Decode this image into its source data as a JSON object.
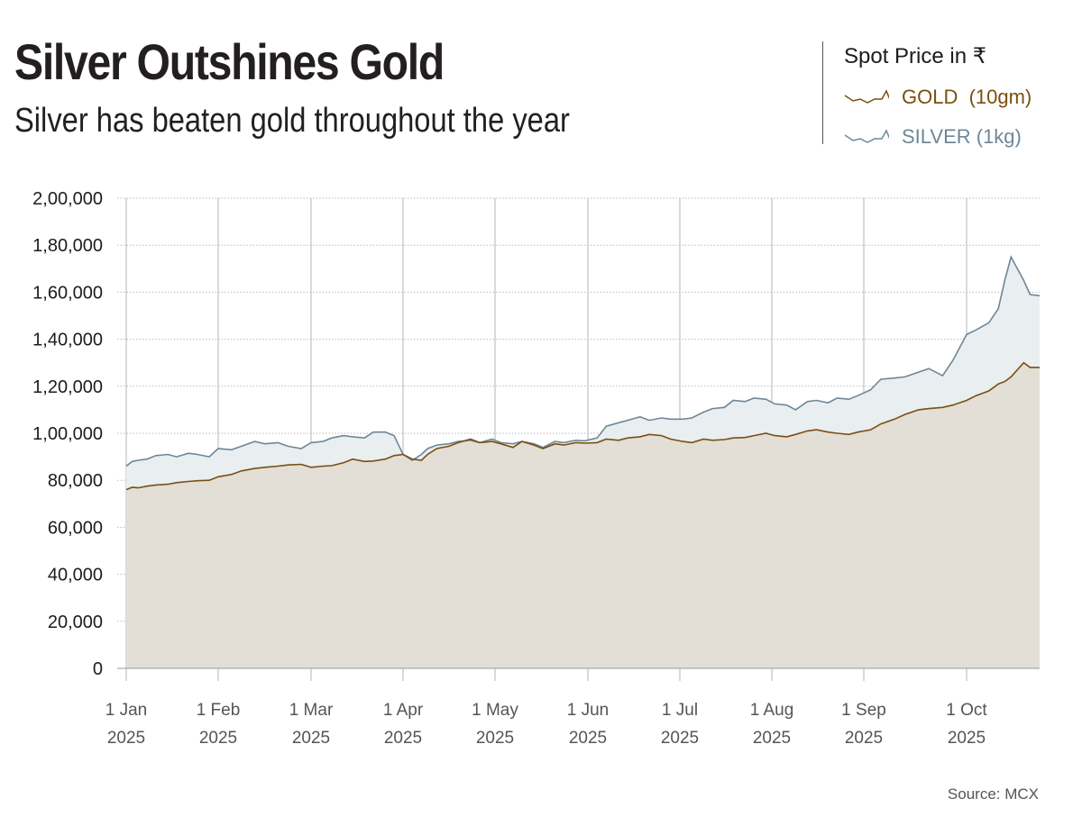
{
  "header": {
    "title": "Silver Outshines Gold",
    "subtitle": "Silver has beaten gold throughout the year"
  },
  "legend": {
    "title": "Spot Price in ₹",
    "items": [
      {
        "label": "GOLD  (10gm)",
        "color": "#7a4f10",
        "icon": "sparkline-icon"
      },
      {
        "label": "SILVER (1kg)",
        "color": "#6e8796",
        "icon": "sparkline-icon"
      }
    ]
  },
  "source": "Source: MCX",
  "colors": {
    "gold_line": "#7a4f10",
    "gold_fill": "#e3ded6",
    "silver_line": "#6e8796",
    "silver_fill": "#e9eef1",
    "grid": "#bbbbbb",
    "vgrid": "#b5b5b5"
  },
  "chart_data": {
    "type": "area",
    "title": "Silver Outshines Gold",
    "subtitle": "Silver has beaten gold throughout the year",
    "xlabel": "",
    "ylabel": "Spot Price in ₹",
    "ylim": [
      0,
      200000
    ],
    "xlim_days": [
      0,
      296
    ],
    "grid": true,
    "legend_position": "top-right",
    "yticks": [
      {
        "value": 0,
        "label": "0"
      },
      {
        "value": 20000,
        "label": "20,000"
      },
      {
        "value": 40000,
        "label": "40,000"
      },
      {
        "value": 60000,
        "label": "60,000"
      },
      {
        "value": 80000,
        "label": "80,000"
      },
      {
        "value": 100000,
        "label": "1,00,000"
      },
      {
        "value": 120000,
        "label": "1,20,000"
      },
      {
        "value": 140000,
        "label": "1,40,000"
      },
      {
        "value": 160000,
        "label": "1,60,000"
      },
      {
        "value": 180000,
        "label": "1,80,000"
      },
      {
        "value": 200000,
        "label": "2,00,000"
      }
    ],
    "xticks": [
      {
        "day": 0,
        "line1": "1 Jan",
        "line2": "2025"
      },
      {
        "day": 31,
        "line1": "1 Feb",
        "line2": "2025"
      },
      {
        "day": 59,
        "line1": "1 Mar",
        "line2": "2025"
      },
      {
        "day": 90,
        "line1": "1 Apr",
        "line2": "2025"
      },
      {
        "day": 120,
        "line1": "1 May",
        "line2": "2025"
      },
      {
        "day": 151,
        "line1": "1 Jun",
        "line2": "2025"
      },
      {
        "day": 181,
        "line1": "1 Jul",
        "line2": "2025"
      },
      {
        "day": 212,
        "line1": "1 Aug",
        "line2": "2025"
      },
      {
        "day": 243,
        "line1": "1 Sep",
        "line2": "2025"
      },
      {
        "day": 273,
        "line1": "1 Oct",
        "line2": "2025"
      }
    ],
    "x_days": [
      0,
      2,
      4,
      7,
      10,
      14,
      17,
      21,
      24,
      28,
      31,
      35,
      38,
      42,
      45,
      49,
      52,
      56,
      59,
      63,
      66,
      70,
      73,
      77,
      80,
      84,
      87,
      90,
      93,
      96,
      98,
      101,
      105,
      108,
      112,
      115,
      119,
      122,
      126,
      129,
      133,
      136,
      140,
      143,
      147,
      150,
      154,
      157,
      161,
      164,
      168,
      171,
      175,
      178,
      182,
      185,
      189,
      192,
      196,
      199,
      203,
      206,
      210,
      213,
      217,
      220,
      224,
      227,
      231,
      234,
      238,
      241,
      245,
      248,
      252,
      255,
      259,
      262,
      266,
      269,
      273,
      276,
      280,
      283,
      285,
      287,
      289,
      291,
      293,
      296
    ],
    "series": [
      {
        "name": "GOLD  (10gm)",
        "values": [
          76000,
          77000,
          76800,
          77500,
          78000,
          78300,
          79000,
          79500,
          79800,
          80000,
          81500,
          82500,
          84000,
          85000,
          85500,
          86000,
          86500,
          86800,
          85500,
          86000,
          86200,
          87500,
          89000,
          88000,
          88200,
          89000,
          90500,
          91000,
          89000,
          88500,
          91000,
          93500,
          94500,
          96000,
          97500,
          96000,
          96500,
          95500,
          94000,
          96500,
          95000,
          93500,
          95500,
          95000,
          96000,
          95800,
          96000,
          97500,
          97000,
          98000,
          98500,
          99500,
          99000,
          97500,
          96500,
          96000,
          97500,
          97000,
          97300,
          98000,
          98200,
          99000,
          100000,
          99000,
          98500,
          99500,
          101000,
          101500,
          100500,
          100000,
          99500,
          100500,
          101500,
          104000,
          106000,
          108000,
          110000,
          110500,
          111000,
          112000,
          114000,
          116000,
          118000,
          121000,
          122000,
          124000,
          127000,
          130000,
          128000,
          128000
        ]
      },
      {
        "name": "SILVER (1kg)",
        "values": [
          86000,
          88000,
          88500,
          89000,
          90500,
          91000,
          90000,
          91500,
          91000,
          90000,
          93500,
          93000,
          94500,
          96500,
          95500,
          96000,
          94500,
          93500,
          96000,
          96500,
          98000,
          99000,
          98500,
          98000,
          100500,
          100500,
          99000,
          91000,
          88500,
          91000,
          93500,
          95000,
          95500,
          96500,
          97000,
          96000,
          97500,
          96000,
          95500,
          96500,
          95500,
          94000,
          96500,
          96000,
          97000,
          96800,
          98000,
          103000,
          104500,
          105500,
          107000,
          105500,
          106500,
          106000,
          106000,
          106500,
          109000,
          110500,
          111000,
          114000,
          113500,
          115000,
          114500,
          112500,
          112000,
          110000,
          113500,
          114000,
          113000,
          115000,
          114500,
          116000,
          118500,
          123000,
          123500,
          124000,
          126000,
          127500,
          124500,
          131000,
          142000,
          144000,
          147000,
          153000,
          165000,
          175000,
          170000,
          165000,
          159000,
          158500
        ]
      }
    ]
  }
}
